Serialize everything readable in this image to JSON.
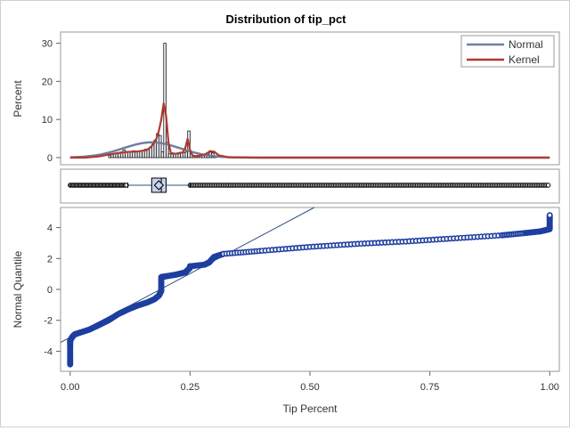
{
  "chart_data": {
    "type": "histogram+boxplot+qqplot",
    "title": "Distribution of tip_pct",
    "colors": {
      "normal": "#6f7fa0",
      "kernel": "#b03a2e",
      "qq_points": "#1f3f9f",
      "qq_line": "#30507f",
      "box_fill": "#c8d2ec",
      "bars": "#1a1a1a"
    },
    "histogram": {
      "ylabel": "Percent",
      "ylim": [
        0,
        32
      ],
      "yticks": [
        0,
        10,
        20,
        30
      ],
      "bin_width": 0.005,
      "bins": [
        {
          "x": 0.08,
          "pct": 0.6
        },
        {
          "x": 0.085,
          "pct": 0.8
        },
        {
          "x": 0.09,
          "pct": 1.0
        },
        {
          "x": 0.095,
          "pct": 1.1
        },
        {
          "x": 0.1,
          "pct": 1.3
        },
        {
          "x": 0.105,
          "pct": 1.5
        },
        {
          "x": 0.11,
          "pct": 2.0
        },
        {
          "x": 0.115,
          "pct": 1.6
        },
        {
          "x": 0.12,
          "pct": 1.6
        },
        {
          "x": 0.125,
          "pct": 1.5
        },
        {
          "x": 0.13,
          "pct": 1.8
        },
        {
          "x": 0.135,
          "pct": 1.7
        },
        {
          "x": 0.14,
          "pct": 1.6
        },
        {
          "x": 0.145,
          "pct": 1.6
        },
        {
          "x": 0.15,
          "pct": 1.8
        },
        {
          "x": 0.155,
          "pct": 2.2
        },
        {
          "x": 0.16,
          "pct": 2.3
        },
        {
          "x": 0.165,
          "pct": 2.6
        },
        {
          "x": 0.17,
          "pct": 3.5
        },
        {
          "x": 0.175,
          "pct": 4.6
        },
        {
          "x": 0.18,
          "pct": 6.3
        },
        {
          "x": 0.185,
          "pct": 5.8
        },
        {
          "x": 0.19,
          "pct": 1.5
        },
        {
          "x": 0.195,
          "pct": 30.0
        },
        {
          "x": 0.2,
          "pct": 4.0
        },
        {
          "x": 0.205,
          "pct": 1.0
        },
        {
          "x": 0.21,
          "pct": 0.9
        },
        {
          "x": 0.215,
          "pct": 1.1
        },
        {
          "x": 0.22,
          "pct": 1.0
        },
        {
          "x": 0.225,
          "pct": 1.0
        },
        {
          "x": 0.23,
          "pct": 1.2
        },
        {
          "x": 0.235,
          "pct": 1.3
        },
        {
          "x": 0.24,
          "pct": 1.5
        },
        {
          "x": 0.245,
          "pct": 7.0
        },
        {
          "x": 0.25,
          "pct": 1.0
        },
        {
          "x": 0.255,
          "pct": 0.5
        },
        {
          "x": 0.26,
          "pct": 0.4
        },
        {
          "x": 0.265,
          "pct": 0.4
        },
        {
          "x": 0.27,
          "pct": 0.5
        },
        {
          "x": 0.275,
          "pct": 0.6
        },
        {
          "x": 0.28,
          "pct": 0.8
        },
        {
          "x": 0.285,
          "pct": 0.9
        },
        {
          "x": 0.29,
          "pct": 1.8
        },
        {
          "x": 0.295,
          "pct": 1.2
        },
        {
          "x": 0.3,
          "pct": 0.4
        }
      ],
      "normal_curve": {
        "mean": 0.17,
        "sd": 0.06,
        "peak": 4.0
      },
      "kernel_curve": {
        "x": [
          0.0,
          0.03,
          0.06,
          0.08,
          0.1,
          0.12,
          0.14,
          0.16,
          0.17,
          0.18,
          0.185,
          0.19,
          0.195,
          0.2,
          0.205,
          0.21,
          0.22,
          0.235,
          0.24,
          0.245,
          0.25,
          0.255,
          0.26,
          0.27,
          0.28,
          0.29,
          0.3,
          0.31,
          0.33,
          0.4,
          1.0
        ],
        "pct": [
          0.0,
          0.0,
          0.3,
          0.8,
          1.2,
          1.5,
          1.6,
          2.0,
          3.0,
          5.0,
          7.0,
          10.0,
          14.3,
          11.0,
          4.0,
          1.2,
          1.0,
          1.4,
          2.5,
          5.0,
          2.0,
          0.6,
          0.4,
          0.5,
          0.8,
          1.5,
          1.6,
          0.6,
          0.1,
          0.0,
          0.0
        ]
      },
      "legend": [
        {
          "label": "Normal",
          "series": "normal"
        },
        {
          "label": "Kernel",
          "series": "kernel"
        }
      ],
      "legend_position": "top-right"
    },
    "boxplot": {
      "q1": 0.17,
      "median": 0.19,
      "mean": 0.185,
      "q3": 0.2,
      "whisker_low": 0.12,
      "whisker_high": 0.25,
      "low_outlier_range": [
        0.0,
        0.12
      ],
      "high_outlier_range": [
        0.25,
        1.0
      ]
    },
    "qqplot": {
      "ylabel": "Normal Quantile",
      "ylim": [
        -5.3,
        5.3
      ],
      "yticks": [
        -4,
        -2,
        0,
        2,
        4
      ],
      "ref_line": {
        "intercept": -3.1,
        "slope": 16.5
      },
      "curve_x": [
        0.0,
        0.0,
        0.0,
        0.0,
        0.005,
        0.01,
        0.02,
        0.04,
        0.06,
        0.08,
        0.1,
        0.12,
        0.14,
        0.16,
        0.175,
        0.185,
        0.19,
        0.19,
        0.2,
        0.22,
        0.24,
        0.245,
        0.25,
        0.25,
        0.28,
        0.29,
        0.3,
        0.32,
        0.4,
        0.5,
        0.6,
        0.7,
        0.8,
        0.9,
        0.95,
        0.98,
        1.0,
        1.0,
        1.0
      ],
      "curve_q": [
        -4.85,
        -4.3,
        -3.6,
        -3.3,
        -3.05,
        -2.9,
        -2.8,
        -2.6,
        -2.3,
        -2.0,
        -1.6,
        -1.3,
        -1.05,
        -0.85,
        -0.65,
        -0.4,
        -0.1,
        0.8,
        0.85,
        0.95,
        1.1,
        1.25,
        1.4,
        1.5,
        1.6,
        1.75,
        2.1,
        2.3,
        2.5,
        2.75,
        2.95,
        3.1,
        3.3,
        3.5,
        3.65,
        3.75,
        3.9,
        4.4,
        4.8
      ]
    },
    "xaxis": {
      "label": "Tip Percent",
      "xlim": [
        -0.02,
        1.02
      ],
      "ticks": [
        0.0,
        0.25,
        0.5,
        0.75,
        1.0
      ],
      "tick_labels": [
        "0.00",
        "0.25",
        "0.50",
        "0.75",
        "1.00"
      ]
    }
  }
}
